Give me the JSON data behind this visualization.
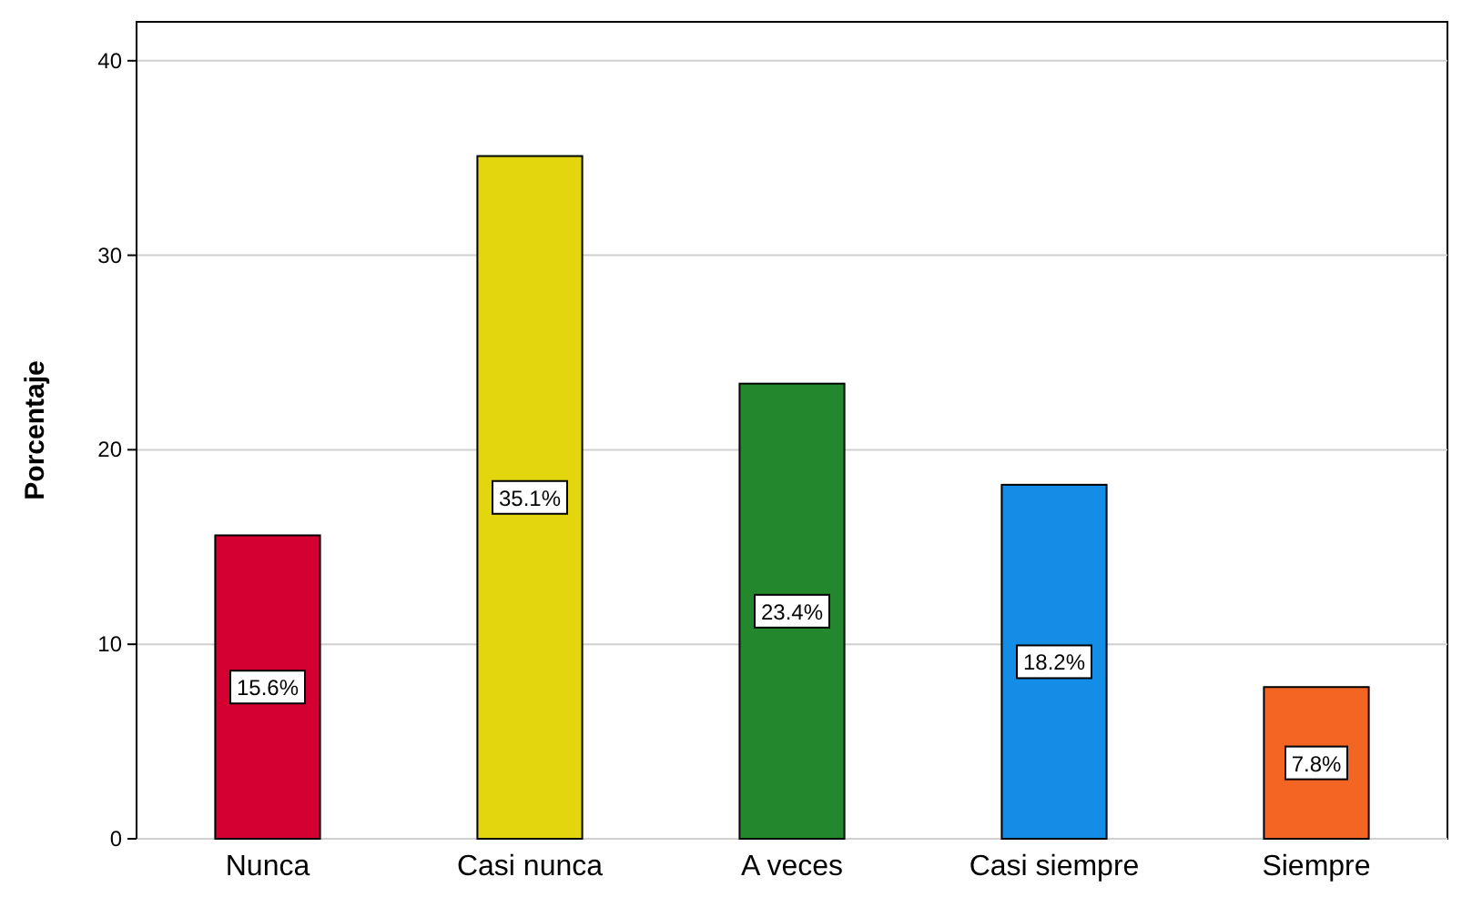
{
  "chart_data": {
    "type": "bar",
    "ylabel": "Porcentaje",
    "categories": [
      "Nunca",
      "Casi nunca",
      "A veces",
      "Casi siempre",
      "Siempre"
    ],
    "values": [
      15.6,
      35.1,
      23.4,
      18.2,
      7.8
    ],
    "colors": [
      "#d40032",
      "#e3d60e",
      "#23882d",
      "#138de6",
      "#f26522"
    ],
    "value_labels": [
      "15.6%",
      "35.1%",
      "23.4%",
      "18.2%",
      "7.8%"
    ],
    "ylim": [
      0,
      42
    ],
    "yticks": [
      0,
      10,
      20,
      30,
      40
    ],
    "grid": "y"
  }
}
